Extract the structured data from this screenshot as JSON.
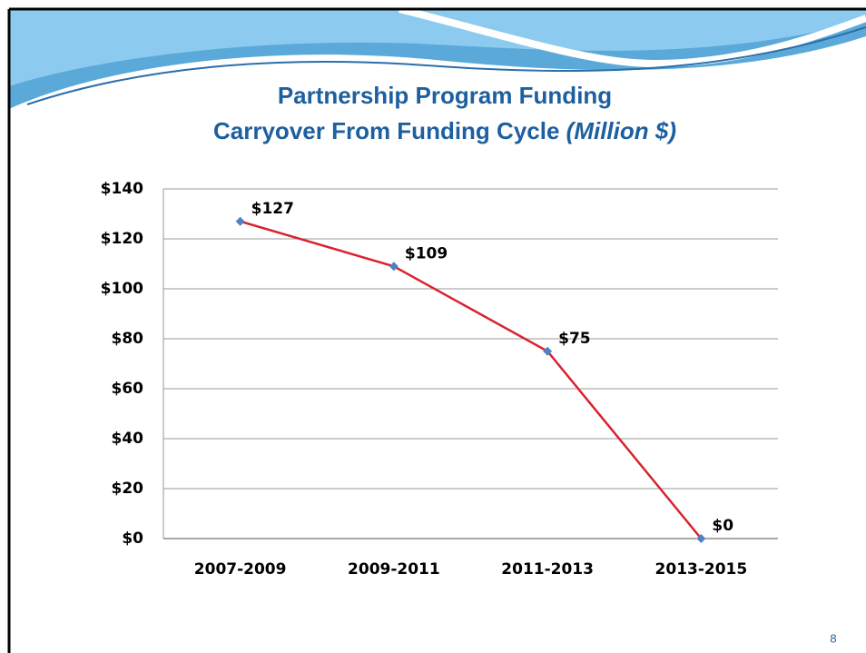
{
  "chart_data": {
    "type": "line",
    "title": "Partnership Program Funding",
    "subtitle": "Carryover From Funding Cycle",
    "subtitle_unit": "(Million $)",
    "categories": [
      "2007-2009",
      "2009-2011",
      "2011-2013",
      "2013-2015"
    ],
    "values": [
      127,
      109,
      75,
      0
    ],
    "value_labels": [
      "$127",
      "$109",
      "$75",
      "$0"
    ],
    "color": "#d8232f",
    "marker_color": "#4f81c7",
    "ylim": [
      0,
      140
    ],
    "yticks": [
      {
        "value": 0,
        "label": "$0"
      },
      {
        "value": 20,
        "label": "$20"
      },
      {
        "value": 40,
        "label": "$40"
      },
      {
        "value": 60,
        "label": "$60"
      },
      {
        "value": 80,
        "label": "$80"
      },
      {
        "value": 100,
        "label": "$100"
      },
      {
        "value": 120,
        "label": "$120"
      },
      {
        "value": 140,
        "label": "$140"
      }
    ],
    "grid": true
  },
  "page_number": "8"
}
